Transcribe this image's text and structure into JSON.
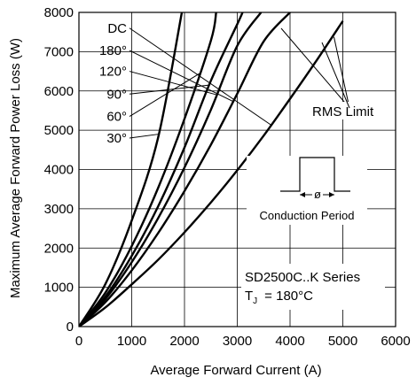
{
  "chart_data": {
    "type": "line",
    "title": "",
    "xlabel": "Average Forward Current (A)",
    "ylabel": "Maximum Average Forward Power Loss (W)",
    "xlim": [
      0,
      6000
    ],
    "ylim": [
      0,
      8000
    ],
    "xticks": [
      "0",
      "1000",
      "2000",
      "3000",
      "4000",
      "5000",
      "6000"
    ],
    "yticks": [
      "0",
      "1000",
      "2000",
      "3000",
      "4000",
      "5000",
      "6000",
      "7000",
      "8000"
    ],
    "grid": true,
    "series": [
      {
        "name": "DC",
        "x": [
          0,
          500,
          1000,
          1500,
          2000,
          2500,
          3000,
          3500,
          4000,
          4500,
          5000
        ],
        "y": [
          0,
          485,
          1075,
          1700,
          2400,
          3160,
          3980,
          4860,
          5800,
          6770,
          7780
        ]
      },
      {
        "name": "180°",
        "x": [
          0,
          500,
          1000,
          1500,
          2000,
          2500,
          3000,
          3500,
          4000
        ],
        "y": [
          0,
          620,
          1430,
          2380,
          3450,
          4630,
          5930,
          7260,
          8000
        ]
      },
      {
        "name": "120°",
        "x": [
          0,
          500,
          1000,
          1500,
          2000,
          2500,
          3000,
          3450
        ],
        "y": [
          0,
          700,
          1640,
          2760,
          4050,
          5520,
          7150,
          8000
        ]
      },
      {
        "name": "90°",
        "x": [
          0,
          500,
          1000,
          1500,
          2000,
          2500,
          3000,
          3100
        ],
        "y": [
          0,
          760,
          1800,
          3060,
          4560,
          6260,
          7700,
          8000
        ]
      },
      {
        "name": "60°",
        "x": [
          0,
          500,
          1000,
          1500,
          2000,
          2500,
          2600
        ],
        "y": [
          0,
          860,
          2050,
          3530,
          5290,
          7280,
          8000
        ]
      },
      {
        "name": "30°",
        "x": [
          0,
          500,
          1000,
          1500,
          1950
        ],
        "y": [
          0,
          1080,
          2700,
          4810,
          8000
        ]
      }
    ],
    "annotations": {
      "rms_limit": "RMS Limit",
      "conduction_period": "Conduction Period",
      "phi": "ø",
      "series_title": "SD2500C..K Series",
      "tj_symbol": "T",
      "tj_subscript": "J",
      "tj_value": "= 180°C"
    }
  }
}
